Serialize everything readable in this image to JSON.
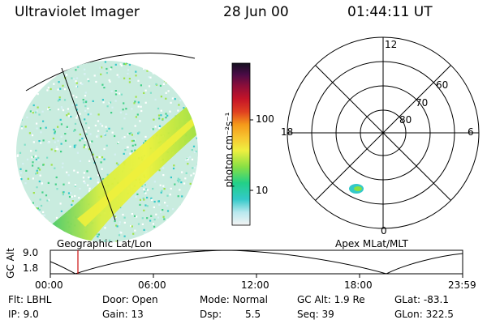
{
  "header": {
    "instrument": "Ultraviolet Imager",
    "date": "28 Jun 00",
    "time": "01:44:11 UT"
  },
  "colorbar": {
    "unit_label": "photon cm⁻²s⁻¹",
    "ticks": [
      "100",
      "10"
    ],
    "scale": "log"
  },
  "polar_plot": {
    "clock_labels": [
      "12",
      "18",
      "6",
      "0"
    ],
    "lat_labels": [
      "60",
      "70",
      "80"
    ]
  },
  "map_labels": {
    "left": "Geographic Lat/Lon",
    "right": "Apex MLat/MLT"
  },
  "altitude_plot": {
    "ylabel": "GC Alt",
    "yticks": [
      "9.0",
      "1.8"
    ],
    "xticks": [
      "00:00",
      "06:00",
      "12:00",
      "18:00",
      "23:59"
    ]
  },
  "info": {
    "flt": "Flt: LBHL",
    "ip": "IP:  9.0",
    "door": "Door: Open",
    "gain": "Gain: 13",
    "mode": "Mode: Normal",
    "dsp_label": "Dsp:",
    "dsp_value": "5.5",
    "gc_alt": "GC Alt: 1.9 Re",
    "seq": "Seq: 39",
    "glat": "GLat: -83.1",
    "glon": "GLon: 322.5"
  }
}
